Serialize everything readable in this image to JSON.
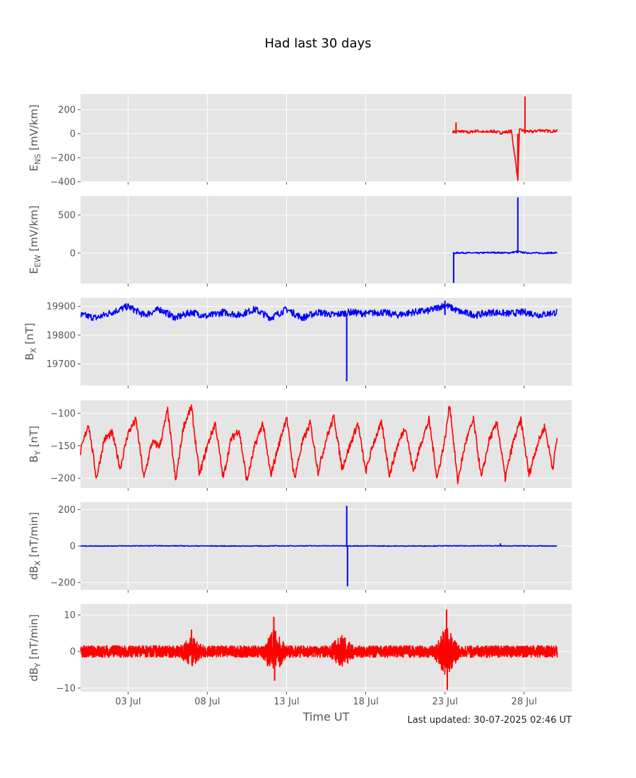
{
  "title": "Had last 30 days",
  "xlabel": "Time UT",
  "footer": "Last updated: 30-07-2025 02:46 UT",
  "colors": {
    "red": "#ff0000",
    "blue": "#0000ff",
    "panel_bg": "#e5e5e5",
    "grid": "#ffffff",
    "tick_text": "#555555"
  },
  "chart_data": [
    {
      "type": "line",
      "ylabel": "E_NS [mV/km]",
      "ylabel_main": "E",
      "ylabel_sub": "NS",
      "ylabel_rest": " [mV/km]",
      "color": "#ff0000",
      "ylim": [
        -400,
        330
      ],
      "yticks": [
        -400,
        -200,
        0,
        200
      ],
      "ytick_labels": [
        "−400",
        "−200",
        "0",
        "200"
      ],
      "grid": true,
      "series": [
        {
          "values": [
            [
              23.5,
              15
            ],
            [
              24,
              20
            ],
            [
              24.5,
              10
            ],
            [
              25,
              25
            ],
            [
              25.5,
              12
            ],
            [
              26,
              22
            ],
            [
              26.5,
              8
            ],
            [
              27.2,
              20
            ],
            [
              27.6,
              -380
            ],
            [
              27.7,
              30
            ],
            [
              28,
              25
            ],
            [
              28.5,
              15
            ],
            [
              29,
              30
            ],
            [
              29.6,
              20
            ],
            [
              30.1,
              25
            ]
          ]
        }
      ],
      "spikes": [
        [
          27.6,
          -380
        ],
        [
          28.05,
          310
        ],
        [
          23.7,
          95
        ]
      ]
    },
    {
      "type": "line",
      "ylabel": "E_EW [mV/km]",
      "ylabel_main": "E",
      "ylabel_sub": "EW",
      "ylabel_rest": " [mV/km]",
      "color": "#0000ff",
      "ylim": [
        -400,
        750
      ],
      "yticks": [
        0,
        500
      ],
      "ytick_labels": [
        "0",
        "500"
      ],
      "grid": true,
      "series": [
        {
          "values": [
            [
              23.5,
              0
            ],
            [
              24,
              5
            ],
            [
              25,
              0
            ],
            [
              26,
              8
            ],
            [
              27,
              2
            ],
            [
              27.6,
              20
            ],
            [
              28,
              5
            ],
            [
              29,
              0
            ],
            [
              30.1,
              5
            ]
          ]
        }
      ],
      "spikes": [
        [
          23.55,
          -390
        ],
        [
          27.6,
          730
        ]
      ]
    },
    {
      "type": "line",
      "ylabel": "B_X [nT]",
      "ylabel_main": "B",
      "ylabel_sub": "X",
      "ylabel_rest": " [nT]",
      "color": "#0000ff",
      "ylim": [
        19625,
        19930
      ],
      "yticks": [
        19700,
        19800,
        19900
      ],
      "ytick_labels": [
        "19700",
        "19800",
        "19900"
      ],
      "grid": true,
      "series": [
        {
          "values": [
            [
              0,
              19870
            ],
            [
              1,
              19860
            ],
            [
              2,
              19880
            ],
            [
              3,
              19900
            ],
            [
              4,
              19870
            ],
            [
              5,
              19890
            ],
            [
              6,
              19860
            ],
            [
              7,
              19880
            ],
            [
              8,
              19865
            ],
            [
              9,
              19880
            ],
            [
              10,
              19870
            ],
            [
              11,
              19890
            ],
            [
              12,
              19860
            ],
            [
              13,
              19890
            ],
            [
              14,
              19860
            ],
            [
              15,
              19880
            ],
            [
              16,
              19870
            ],
            [
              17,
              19880
            ],
            [
              18,
              19875
            ],
            [
              19,
              19880
            ],
            [
              20,
              19870
            ],
            [
              21,
              19880
            ],
            [
              22,
              19885
            ],
            [
              23,
              19905
            ],
            [
              24,
              19880
            ],
            [
              25,
              19870
            ],
            [
              26,
              19880
            ],
            [
              27,
              19875
            ],
            [
              28,
              19880
            ],
            [
              29,
              19870
            ],
            [
              30.1,
              19880
            ]
          ]
        }
      ],
      "spikes": [
        [
          16.8,
          19640
        ],
        [
          23,
          19920
        ]
      ]
    },
    {
      "type": "line",
      "ylabel": "B_Y [nT]",
      "ylabel_main": "B",
      "ylabel_sub": "Y",
      "ylabel_rest": " [nT]",
      "color": "#ff0000",
      "ylim": [
        -215,
        -80
      ],
      "yticks": [
        -200,
        -150,
        -100
      ],
      "ytick_labels": [
        "−200",
        "−150",
        "−100"
      ],
      "grid": true,
      "series": [
        {
          "values": [
            [
              0,
              -160
            ],
            [
              0.5,
              -115
            ],
            [
              1,
              -200
            ],
            [
              1.5,
              -140
            ],
            [
              2,
              -130
            ],
            [
              2.5,
              -185
            ],
            [
              3,
              -130
            ],
            [
              3.5,
              -110
            ],
            [
              4,
              -200
            ],
            [
              4.5,
              -145
            ],
            [
              5,
              -150
            ],
            [
              5.5,
              -95
            ],
            [
              6,
              -205
            ],
            [
              6.5,
              -120
            ],
            [
              7,
              -90
            ],
            [
              7.5,
              -195
            ],
            [
              8,
              -150
            ],
            [
              8.5,
              -115
            ],
            [
              9,
              -200
            ],
            [
              9.5,
              -140
            ],
            [
              10,
              -125
            ],
            [
              10.5,
              -205
            ],
            [
              11,
              -150
            ],
            [
              11.5,
              -115
            ],
            [
              12,
              -195
            ],
            [
              12.5,
              -150
            ],
            [
              13,
              -105
            ],
            [
              13.5,
              -200
            ],
            [
              14,
              -145
            ],
            [
              14.5,
              -115
            ],
            [
              15,
              -190
            ],
            [
              15.5,
              -140
            ],
            [
              16,
              -105
            ],
            [
              16.5,
              -185
            ],
            [
              17,
              -150
            ],
            [
              17.5,
              -115
            ],
            [
              18,
              -190
            ],
            [
              18.5,
              -145
            ],
            [
              19,
              -115
            ],
            [
              19.5,
              -195
            ],
            [
              20,
              -150
            ],
            [
              20.5,
              -120
            ],
            [
              21,
              -190
            ],
            [
              21.5,
              -145
            ],
            [
              22,
              -110
            ],
            [
              22.5,
              -200
            ],
            [
              23,
              -140
            ],
            [
              23.3,
              -85
            ],
            [
              23.8,
              -205
            ],
            [
              24.3,
              -145
            ],
            [
              24.8,
              -110
            ],
            [
              25.3,
              -200
            ],
            [
              25.8,
              -140
            ],
            [
              26.3,
              -115
            ],
            [
              26.8,
              -200
            ],
            [
              27.3,
              -145
            ],
            [
              27.8,
              -110
            ],
            [
              28.3,
              -195
            ],
            [
              28.8,
              -150
            ],
            [
              29.3,
              -120
            ],
            [
              29.8,
              -185
            ],
            [
              30.1,
              -135
            ]
          ]
        }
      ],
      "spikes": []
    },
    {
      "type": "line",
      "ylabel": "dB_X [nT/min]",
      "ylabel_main": "dB",
      "ylabel_sub": "X",
      "ylabel_rest": " [nT/min]",
      "color": "#0000ff",
      "ylim": [
        -240,
        240
      ],
      "yticks": [
        -200,
        0,
        200
      ],
      "ytick_labels": [
        "−200",
        "0",
        "200"
      ],
      "grid": true,
      "series": [
        {
          "values": [
            [
              0,
              0
            ],
            [
              5,
              1
            ],
            [
              10,
              0
            ],
            [
              15,
              1
            ],
            [
              20,
              0
            ],
            [
              25,
              1
            ],
            [
              30.1,
              0
            ]
          ]
        }
      ],
      "spikes": [
        [
          16.8,
          220
        ],
        [
          16.85,
          -220
        ],
        [
          26.5,
          15
        ]
      ]
    },
    {
      "type": "line",
      "ylabel": "dB_Y [nT/min]",
      "ylabel_main": "dB",
      "ylabel_sub": "Y",
      "ylabel_rest": " [nT/min]",
      "color": "#ff0000",
      "ylim": [
        -11,
        13
      ],
      "yticks": [
        -10,
        0,
        10
      ],
      "ytick_labels": [
        "−10",
        "0",
        "10"
      ],
      "grid": true,
      "series": [
        {
          "values": [
            [
              0,
              0
            ],
            [
              30.1,
              0
            ]
          ]
        }
      ],
      "spikes": [
        [
          12.2,
          9.5
        ],
        [
          12.25,
          -8
        ],
        [
          23.1,
          11.5
        ],
        [
          23.15,
          -10.5
        ],
        [
          7,
          6
        ],
        [
          7.05,
          -4
        ]
      ]
    }
  ],
  "xaxis": {
    "range": [
      0,
      31
    ],
    "ticks": [
      3,
      8,
      13,
      18,
      23,
      28
    ],
    "tick_labels": [
      "03 Jul",
      "08 Jul",
      "13 Jul",
      "18 Jul",
      "23 Jul",
      "28 Jul"
    ]
  }
}
